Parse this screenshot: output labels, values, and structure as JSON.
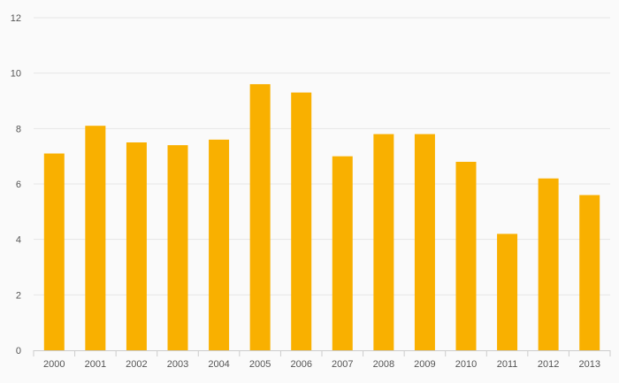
{
  "chart_data": {
    "type": "bar",
    "categories": [
      "2000",
      "2001",
      "2002",
      "2003",
      "2004",
      "2005",
      "2006",
      "2007",
      "2008",
      "2009",
      "2010",
      "2011",
      "2012",
      "2013"
    ],
    "values": [
      7.1,
      8.1,
      7.5,
      7.4,
      7.6,
      9.6,
      9.3,
      7.0,
      7.8,
      7.8,
      6.8,
      4.2,
      6.2,
      5.6
    ],
    "title": "",
    "xlabel": "",
    "ylabel": "",
    "ylim": [
      0,
      12
    ],
    "yticks": [
      "0",
      "2",
      "4",
      "6",
      "8",
      "10",
      "12"
    ],
    "grid": true,
    "legend": "none",
    "colors": {
      "bar": "#f9b000",
      "grid": "#e6e6e6",
      "axis": "#cccccc",
      "text": "#555555"
    }
  }
}
